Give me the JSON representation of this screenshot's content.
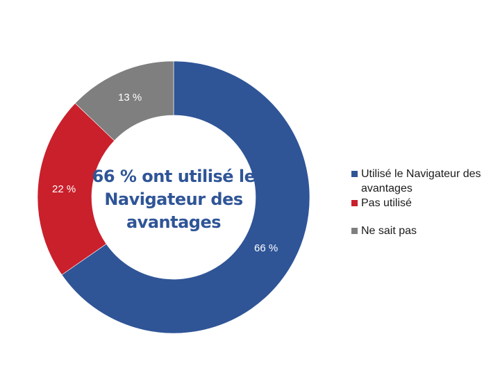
{
  "chart_data": {
    "type": "pie",
    "variant": "donut",
    "title": "66 % ont utilisé le Navigateur des avantages",
    "categories": [
      "Utilisé le Navigateur des avantages",
      "Pas utilisé",
      "Ne sait pas"
    ],
    "values": [
      66,
      22,
      13
    ],
    "unit": "%",
    "colors": [
      "#2F5597",
      "#C9202C",
      "#7F7F7F"
    ],
    "data_labels": [
      "66 %",
      "22 %",
      "13 %"
    ],
    "legend_position": "right",
    "start_angle_deg": 0,
    "direction": "clockwise"
  },
  "center": {
    "line1": "66 % ont utilisé le",
    "line2": "Navigateur des",
    "line3": "avantages"
  },
  "labels": {
    "used": "66 %",
    "not_used": "22 %",
    "unknown": "13 %"
  },
  "legend": {
    "items": [
      {
        "label": "Utilisé le Navigateur des avantages",
        "color": "#2F5597"
      },
      {
        "label": "Pas utilisé",
        "color": "#C9202C"
      },
      {
        "label": "Ne sait pas",
        "color": "#7F7F7F"
      }
    ]
  }
}
